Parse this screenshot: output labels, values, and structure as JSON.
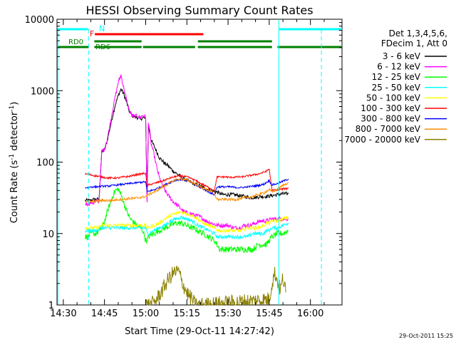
{
  "chart_data": {
    "type": "line",
    "title": "HESSI Observing Summary Count Rates",
    "xlabel": "Start Time (29-Oct-11 14:27:42)",
    "ylabel": "Count Rate (s",
    "ylabel_exp": "-1",
    "ylabel_suffix": " detector",
    "ylabel_exp2": "-1",
    "ylabel_close": ")",
    "x_ticks": [
      "14:30",
      "14:45",
      "15:00",
      "15:15",
      "15:30",
      "15:45",
      "16:00"
    ],
    "x_tick_values": [
      30,
      45,
      60,
      75,
      90,
      105,
      120
    ],
    "y_ticks": [
      "1",
      "10",
      "100",
      "1000",
      "10000"
    ],
    "y_tick_values": [
      1,
      10,
      100,
      1000,
      10000
    ],
    "xlim": [
      27.7,
      131.5
    ],
    "ylim": [
      1,
      10000
    ],
    "y_scale": "log",
    "grid": false,
    "legend": {
      "placement": "right",
      "header": [
        "Det 1,3,4,5,6,",
        "FDecim 1, Att 0"
      ],
      "entries": [
        {
          "label": "3 - 6 keV",
          "color": "#000000"
        },
        {
          "label": "6 - 12 keV",
          "color": "#ff00ff"
        },
        {
          "label": "12 - 25 keV",
          "color": "#00ff00"
        },
        {
          "label": "25 - 50 keV",
          "color": "#00ffff"
        },
        {
          "label": "50 - 100 keV",
          "color": "#ffff00"
        },
        {
          "label": "100 - 300 keV",
          "color": "#ff0000"
        },
        {
          "label": "300 - 800 keV",
          "color": "#0000ff"
        },
        {
          "label": "800 - 7000 keV",
          "color": "#ff8c00"
        },
        {
          "label": "7000 - 20000 keV",
          "color": "#8b8000"
        }
      ]
    },
    "series": [
      {
        "name": "3 - 6 keV",
        "color": "#000000",
        "noise": 0.06,
        "x": [
          38,
          39,
          40,
          41,
          42,
          43,
          44,
          45,
          46,
          47,
          48,
          49,
          50,
          51,
          52,
          53,
          54,
          55,
          56,
          57,
          58,
          59,
          60,
          60.5,
          61,
          62,
          63,
          64,
          65,
          66,
          67,
          68,
          70,
          72,
          74,
          76,
          78,
          80,
          82,
          84,
          86,
          88,
          90,
          92,
          94,
          96,
          98,
          100,
          102,
          104,
          106,
          108,
          110,
          112
        ],
        "y": [
          29,
          29,
          29,
          30,
          30,
          30,
          140,
          150,
          200,
          300,
          450,
          650,
          850,
          1050,
          900,
          700,
          520,
          450,
          430,
          420,
          400,
          420,
          400,
          30,
          330,
          200,
          170,
          140,
          115,
          105,
          95,
          90,
          75,
          66,
          58,
          53,
          49,
          46,
          42,
          40,
          38,
          35,
          35,
          35,
          34,
          33,
          32,
          32,
          33,
          33,
          34,
          35,
          36,
          36
        ]
      },
      {
        "name": "6 - 12 keV",
        "color": "#ff00ff",
        "noise": 0.07,
        "x": [
          38,
          39,
          40,
          41,
          42,
          43,
          44,
          45,
          46,
          47,
          48,
          49,
          50,
          51,
          52,
          53,
          54,
          55,
          56,
          57,
          58,
          59,
          60,
          60.5,
          61,
          62,
          63,
          64,
          65,
          66,
          67,
          68,
          70,
          72,
          74,
          76,
          78,
          80,
          82,
          84,
          86,
          88,
          90,
          92,
          94,
          96,
          98,
          100,
          102,
          104,
          106,
          108,
          110,
          112
        ],
        "y": [
          26,
          26,
          27,
          27,
          28,
          28,
          140,
          150,
          210,
          330,
          550,
          850,
          1300,
          1650,
          1100,
          750,
          530,
          450,
          430,
          450,
          420,
          450,
          420,
          26,
          380,
          180,
          130,
          85,
          60,
          48,
          40,
          35,
          28,
          24,
          20,
          19,
          18,
          17,
          15,
          14,
          13,
          13,
          13,
          12,
          12,
          13,
          13,
          14,
          15,
          15,
          16,
          16,
          16,
          16
        ]
      },
      {
        "name": "12 - 25 keV",
        "color": "#00ff00",
        "noise": 0.1,
        "x": [
          38,
          39,
          40,
          41,
          42,
          43,
          44,
          45,
          46,
          47,
          48,
          49,
          50,
          51,
          52,
          53,
          54,
          55,
          56,
          57,
          58,
          59,
          60,
          60.5,
          61,
          63,
          65,
          67,
          69,
          71,
          73,
          75,
          77,
          79,
          81,
          83,
          85,
          86,
          87,
          89,
          91,
          93,
          95,
          97,
          99,
          101,
          103,
          104,
          105,
          106,
          108,
          110,
          112
        ],
        "y": [
          9,
          9,
          10,
          10,
          10,
          11,
          12,
          15,
          20,
          26,
          34,
          40,
          42,
          35,
          27,
          21,
          17,
          15,
          14,
          13,
          12,
          11,
          8,
          8,
          9,
          10,
          11,
          12,
          13,
          14,
          14,
          13,
          12,
          11,
          10,
          9,
          8,
          7,
          6,
          6,
          6,
          6,
          6,
          6,
          6,
          7,
          7,
          7,
          8,
          9,
          10,
          10,
          11
        ]
      },
      {
        "name": "25 - 50 keV",
        "color": "#00ffff",
        "noise": 0.06,
        "x": [
          38,
          40,
          42,
          44,
          46,
          48,
          50,
          52,
          54,
          56,
          58,
          60,
          60.5,
          61,
          63,
          65,
          67,
          69,
          71,
          73,
          75,
          77,
          79,
          81,
          83,
          85,
          86,
          87,
          89,
          91,
          93,
          95,
          97,
          99,
          101,
          103,
          104,
          105,
          106,
          108,
          110,
          112
        ],
        "y": [
          11,
          11,
          11,
          12,
          12,
          12,
          12,
          12,
          12,
          12,
          12,
          12,
          10,
          10,
          11,
          12,
          13,
          15,
          16,
          17,
          16,
          15,
          13,
          12,
          11,
          10,
          9,
          9,
          9,
          9,
          9,
          9,
          9,
          10,
          10,
          10,
          11,
          11,
          12,
          12,
          13,
          14
        ]
      },
      {
        "name": "50 - 100 keV",
        "color": "#ffff00",
        "noise": 0.06,
        "x": [
          38,
          40,
          42,
          44,
          46,
          48,
          50,
          52,
          54,
          56,
          58,
          60,
          60.5,
          61,
          63,
          65,
          67,
          69,
          71,
          73,
          75,
          77,
          79,
          81,
          83,
          85,
          86,
          87,
          89,
          91,
          93,
          95,
          97,
          99,
          101,
          103,
          104,
          105,
          106,
          108,
          110,
          112
        ],
        "y": [
          12,
          12,
          12,
          13,
          13,
          13,
          13,
          13,
          13,
          13,
          13,
          13,
          12,
          12,
          13,
          14,
          16,
          18,
          19,
          20,
          19,
          18,
          16,
          14,
          13,
          12,
          11,
          11,
          11,
          11,
          11,
          11,
          12,
          12,
          12,
          13,
          14,
          14,
          15,
          15,
          16,
          17
        ]
      },
      {
        "name": "100 - 300 keV",
        "color": "#ff0000",
        "noise": 0.03,
        "x": [
          38,
          39,
          40,
          42,
          44,
          46,
          48,
          50,
          52,
          54,
          56,
          58,
          60,
          60.5,
          61,
          63,
          65,
          67,
          69,
          71,
          73,
          75,
          77,
          79,
          81,
          83,
          85,
          86,
          87,
          89,
          91,
          93,
          95,
          97,
          99,
          101,
          103,
          104,
          105,
          106,
          108,
          110,
          112
        ],
        "y": [
          68,
          68,
          66,
          64,
          62,
          60,
          60,
          60,
          62,
          63,
          66,
          68,
          70,
          46,
          48,
          50,
          53,
          56,
          60,
          63,
          64,
          62,
          58,
          53,
          48,
          44,
          40,
          62,
          62,
          62,
          61,
          62,
          62,
          64,
          66,
          68,
          72,
          75,
          80,
          40,
          41,
          42,
          43
        ]
      },
      {
        "name": "300 - 800 keV",
        "color": "#0000ff",
        "noise": 0.03,
        "x": [
          38,
          39,
          40,
          42,
          44,
          46,
          48,
          50,
          52,
          54,
          56,
          58,
          60,
          60.5,
          61,
          63,
          65,
          67,
          69,
          71,
          73,
          75,
          77,
          79,
          81,
          83,
          85,
          86,
          87,
          89,
          91,
          93,
          95,
          97,
          99,
          101,
          103,
          104,
          105,
          106,
          108,
          110,
          112
        ],
        "y": [
          44,
          44,
          45,
          45,
          46,
          46,
          47,
          48,
          49,
          50,
          51,
          52,
          53,
          38,
          39,
          41,
          44,
          48,
          52,
          56,
          57,
          55,
          51,
          46,
          42,
          38,
          35,
          45,
          45,
          45,
          45,
          44,
          44,
          45,
          46,
          47,
          49,
          52,
          55,
          48,
          50,
          54,
          58
        ]
      },
      {
        "name": "800 - 7000 keV",
        "color": "#ff8c00",
        "noise": 0.04,
        "x": [
          38,
          39,
          40,
          42,
          44,
          46,
          48,
          50,
          52,
          54,
          56,
          58,
          60,
          60.5,
          61,
          63,
          65,
          67,
          69,
          71,
          73,
          75,
          77,
          79,
          81,
          83,
          85,
          86,
          87,
          89,
          91,
          93,
          95,
          97,
          99,
          101,
          103,
          104,
          105,
          106,
          108,
          110,
          112
        ],
        "y": [
          28,
          28,
          28,
          28,
          29,
          29,
          29,
          30,
          30,
          31,
          31,
          32,
          33,
          34,
          35,
          38,
          42,
          47,
          52,
          57,
          58,
          56,
          52,
          47,
          43,
          40,
          37,
          30,
          30,
          30,
          30,
          30,
          31,
          32,
          33,
          35,
          37,
          39,
          41,
          38,
          42,
          47,
          52
        ]
      },
      {
        "name": "7000 - 20000 keV",
        "color": "#8b8000",
        "noise": 0.25,
        "x": [
          60,
          62,
          64,
          66,
          68,
          70,
          72,
          73,
          74,
          75,
          76,
          77,
          78,
          80,
          81,
          105,
          106,
          107,
          108,
          109,
          110,
          111
        ],
        "y": [
          1,
          1,
          1.2,
          1.6,
          2.2,
          2.8,
          3.0,
          2.2,
          1.8,
          1.5,
          1.3,
          1.2,
          1,
          1,
          1,
          1.2,
          2,
          2.8,
          2.2,
          1.6,
          2.4,
          1.5
        ]
      }
    ],
    "annotations": {
      "attenuator_label": "N",
      "flare_label": "F",
      "rd_labels": [
        "RD0",
        "RD6"
      ],
      "cyan_color": "#00ffff",
      "red_color": "#ff0000",
      "green_color": "#008000"
    },
    "timestamp": "29-Oct-2011 15:25"
  }
}
